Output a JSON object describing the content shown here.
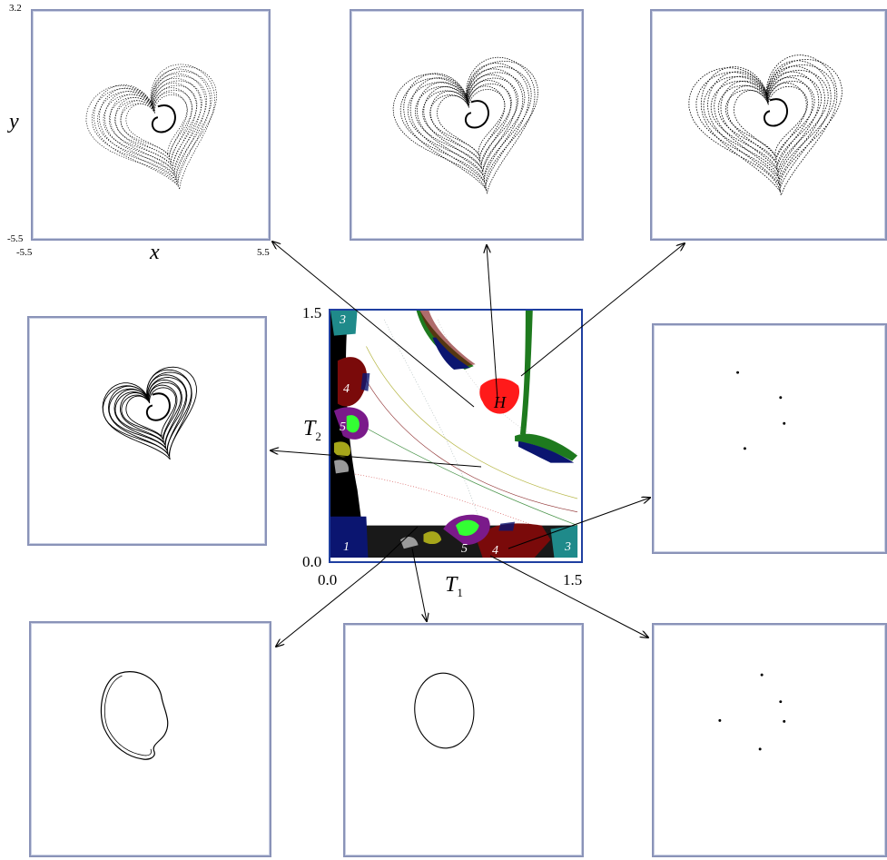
{
  "panel_axes": {
    "y_max": "3.2",
    "y_min": "-5.5",
    "x_min": "-5.5",
    "x_max": "5.5",
    "x_label": "x",
    "y_label": "y"
  },
  "central_map": {
    "x_label": "T",
    "x_label_sub": "1",
    "y_label": "T",
    "y_label_sub": "2",
    "x_min": "0.0",
    "x_max": "1.5",
    "y_min": "0.0",
    "y_max": "1.5",
    "region_labels": [
      "1",
      "3",
      "4",
      "5",
      "5",
      "4",
      "3",
      "H"
    ],
    "colors": {
      "navy": "#0b1570",
      "maroon": "#7a0a0a",
      "teal": "#1f8a8a",
      "purple": "#7a1a8a",
      "green": "#1e7a1e",
      "bright_green": "#33ff33",
      "red": "#ff1a1a",
      "olive": "#a6a61a",
      "blue_frame": "#1f3fa0"
    }
  },
  "panels": [
    {
      "id": "chaotic-attractor-1",
      "kind": "chaotic attractor"
    },
    {
      "id": "chaotic-attractor-2",
      "kind": "chaotic attractor"
    },
    {
      "id": "chaotic-attractor-3",
      "kind": "chaotic attractor"
    },
    {
      "id": "chaotic-attractor-4",
      "kind": "chaotic attractor"
    },
    {
      "id": "period-4-points",
      "kind": "period-4 orbit"
    },
    {
      "id": "torus-curve",
      "kind": "torus"
    },
    {
      "id": "closed-curve",
      "kind": "limit cycle"
    },
    {
      "id": "period-5-points",
      "kind": "period-5 orbit"
    }
  ]
}
